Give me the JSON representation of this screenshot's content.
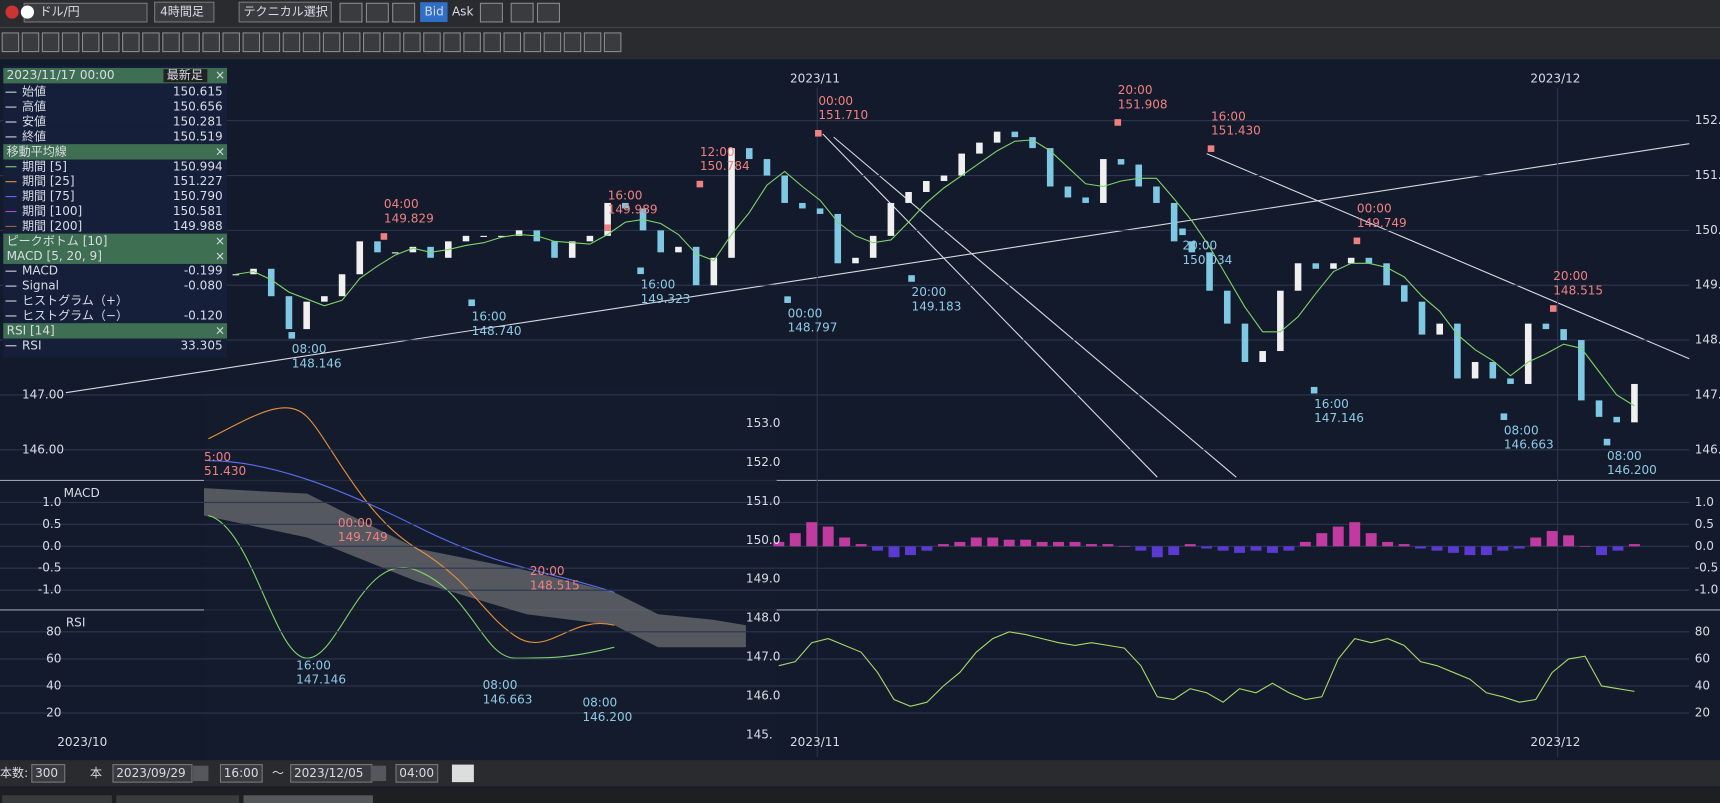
{
  "toolbar": {
    "symbol": "ドル/円",
    "timeframe": "4時間足",
    "technical": "テクニカル選択",
    "bid": "Bid",
    "ask": "Ask"
  },
  "info_panel": {
    "date": "2023/11/17 00:00",
    "latest": "最新足",
    "close": "×",
    "ohlc": [
      {
        "label": "始値",
        "value": "150.615"
      },
      {
        "label": "高値",
        "value": "150.656"
      },
      {
        "label": "安値",
        "value": "150.281"
      },
      {
        "label": "終値",
        "value": "150.519"
      }
    ],
    "ma_title": "移動平均線",
    "ma": [
      {
        "label": "期間 [5]",
        "value": "150.994",
        "color": "#7fd36a"
      },
      {
        "label": "期間 [25]",
        "value": "151.227",
        "color": "#e8913a"
      },
      {
        "label": "期間 [75]",
        "value": "150.790",
        "color": "#5b6ef0"
      },
      {
        "label": "期間 [100]",
        "value": "150.581",
        "color": "#b24ad8"
      },
      {
        "label": "期間 [200]",
        "value": "149.988",
        "color": "#a0603a"
      }
    ],
    "peak_bottom": "ピークボトム [10]",
    "macd_title": "MACD [5, 20, 9]",
    "macd": [
      {
        "label": "MACD",
        "value": "-0.199"
      },
      {
        "label": "Signal",
        "value": "-0.080"
      },
      {
        "label": "ヒストグラム（+）"
      },
      {
        "label": "ヒストグラム（−）",
        "value": "-0.120"
      }
    ],
    "rsi_title": "RSI [14]",
    "rsi": [
      {
        "label": "RSI",
        "value": "33.305"
      }
    ]
  },
  "chart": {
    "price_ticks": [
      {
        "value": 152,
        "label": "152."
      },
      {
        "value": 151,
        "label": "151."
      },
      {
        "value": 150,
        "label": "150."
      },
      {
        "value": 149,
        "label": "149."
      },
      {
        "value": 148,
        "label": "148."
      },
      {
        "value": 147,
        "label": "147."
      },
      {
        "value": 146,
        "label": "146."
      }
    ],
    "left_price_ticks": [
      {
        "value": 147,
        "label": "147.00"
      },
      {
        "value": 146,
        "label": "146.00"
      }
    ],
    "macd_label": "MACD",
    "rsi_label": "RSI",
    "macd_ticks": [
      {
        "value": 1,
        "label": "1.0"
      },
      {
        "value": 0.5,
        "label": "0.5"
      },
      {
        "value": 0,
        "label": "0.0"
      },
      {
        "value": -0.5,
        "label": "-0.5"
      },
      {
        "value": -1,
        "label": "-1.0"
      }
    ],
    "rsi_ticks": [
      80,
      60,
      40,
      20
    ],
    "top_dates": [
      "2023/11",
      "2023/12"
    ],
    "bottom_dates": [
      "2023/10",
      "2023/11",
      "2023/12"
    ],
    "peaks": [
      {
        "time": "04:00",
        "price": "149.829"
      },
      {
        "time": "16:00",
        "price": "149.989"
      },
      {
        "time": "12:00",
        "price": "150.784"
      },
      {
        "time": "00:00",
        "price": "151.710"
      },
      {
        "time": "20:00",
        "price": "151.908"
      },
      {
        "time": "16:00",
        "price": "151.430"
      },
      {
        "time": "00:00",
        "price": "149.749"
      },
      {
        "time": "20:00",
        "price": "148.515"
      }
    ],
    "bottoms": [
      {
        "time": "08:00",
        "price": "148.146"
      },
      {
        "time": "16:00",
        "price": "148.740"
      },
      {
        "time": "16:00",
        "price": "149.323"
      },
      {
        "time": "00:00",
        "price": "148.797"
      },
      {
        "time": "20:00",
        "price": "149.183"
      },
      {
        "time": "20:00",
        "price": "150.034"
      },
      {
        "time": "16:00",
        "price": "147.146"
      },
      {
        "time": "08:00",
        "price": "146.663"
      },
      {
        "time": "08:00",
        "price": "146.200"
      }
    ],
    "closes": [
      149.2,
      149.3,
      148.8,
      148.2,
      148.7,
      148.8,
      149.2,
      149.8,
      149.6,
      149.6,
      149.7,
      149.5,
      149.8,
      149.9,
      149.9,
      149.9,
      150.0,
      149.8,
      149.5,
      149.8,
      149.9,
      150.5,
      150.4,
      150.0,
      149.6,
      149.7,
      149.0,
      149.5,
      151.5,
      151.3,
      151.0,
      150.5,
      150.4,
      150.3,
      149.4,
      149.5,
      149.9,
      150.5,
      150.7,
      150.9,
      151.0,
      151.4,
      151.6,
      151.8,
      151.7,
      151.5,
      150.8,
      150.6,
      150.5,
      151.3,
      151.2,
      150.8,
      150.5,
      149.8,
      149.6,
      148.9,
      148.3,
      147.6,
      147.8,
      148.9,
      149.4,
      149.3,
      149.4,
      149.5,
      149.4,
      149.0,
      148.7,
      148.1,
      148.3,
      147.3,
      147.6,
      147.3,
      147.2,
      148.3,
      148.2,
      148.0,
      146.9,
      146.6,
      146.5,
      147.2
    ],
    "macd_hist": [
      0.1,
      0.3,
      0.55,
      0.45,
      0.2,
      0.05,
      -0.1,
      -0.25,
      -0.2,
      -0.1,
      0.05,
      0.1,
      0.2,
      0.2,
      0.15,
      0.15,
      0.1,
      0.1,
      0.1,
      0.05,
      0.05,
      0.0,
      -0.1,
      -0.25,
      -0.2,
      0.05,
      -0.05,
      -0.1,
      -0.15,
      -0.1,
      -0.15,
      -0.1,
      0.1,
      0.3,
      0.45,
      0.55,
      0.3,
      0.1,
      0.05,
      -0.05,
      -0.1,
      -0.15,
      -0.2,
      -0.2,
      -0.1,
      -0.05,
      0.2,
      0.35,
      0.25,
      0.0,
      -0.2,
      -0.1,
      0.05
    ],
    "rsi": [
      55,
      58,
      72,
      75,
      70,
      65,
      50,
      30,
      25,
      28,
      40,
      50,
      65,
      75,
      80,
      78,
      75,
      72,
      70,
      72,
      70,
      68,
      55,
      32,
      30,
      38,
      35,
      28,
      38,
      35,
      42,
      35,
      30,
      32,
      60,
      75,
      72,
      75,
      70,
      58,
      55,
      50,
      45,
      35,
      32,
      28,
      30,
      50,
      60,
      62,
      40,
      38,
      36
    ]
  },
  "overlay": {
    "axis": [
      "153.0",
      "152.0",
      "151.0",
      "150.0",
      "149.0",
      "148.0",
      "147.0",
      "146.0",
      "145."
    ],
    "notes": [
      {
        "time": "5:00",
        "price": "51.430"
      },
      {
        "time": "00:00",
        "price": "149.749"
      },
      {
        "time": "20:00",
        "price": "148.515"
      },
      {
        "time": "16:00",
        "price": "147.146"
      },
      {
        "time": "08:00",
        "price": "146.663"
      },
      {
        "time": "08:00",
        "price": "146.200"
      }
    ]
  },
  "bottom_bar": {
    "count_label": "本数:",
    "count": "300",
    "unit": "本",
    "from_date": "2023/09/29",
    "from_time": "16:00",
    "tilde": "〜",
    "to_date": "2023/12/05",
    "to_time": "04:00"
  }
}
